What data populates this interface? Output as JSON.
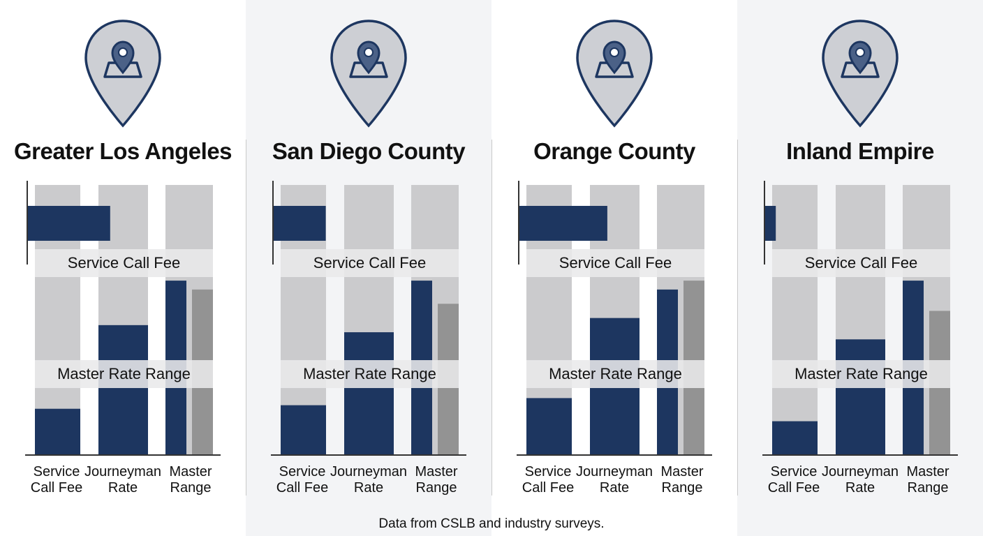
{
  "caption": "Data from CSLB and industry surveys.",
  "colors": {
    "bar": "#1d3660",
    "track": "#cbcbcd",
    "master_max": "#939393",
    "band": "#e9e9eb",
    "axis": "#333333",
    "panel_alt": "#f3f4f6",
    "pin_fill": "#cdcfd4",
    "pin_stroke": "#1d3660"
  },
  "icons": {
    "region": "map-pin-icon"
  },
  "chart_data": [
    {
      "type": "bar",
      "title": "Greater Los Angeles",
      "categories": [
        "Service Call Fee",
        "Journeyman Rate",
        "Master Range"
      ],
      "category_labels": [
        [
          "Service",
          "Call Fee"
        ],
        [
          "Journeyman",
          "Rate"
        ],
        [
          "Master",
          "Range"
        ]
      ],
      "band_labels": [
        "Service Call Fee",
        "Master Rate Range"
      ],
      "horizontal_bar": {
        "label": "Service Call Fee",
        "value": 0.44
      },
      "values": [
        0.26,
        0.73,
        0.98
      ],
      "master_max": 0.93,
      "ylim": [
        0,
        1
      ]
    },
    {
      "type": "bar",
      "title": "San Diego County",
      "categories": [
        "Service Call Fee",
        "Journeyman Rate",
        "Master Range"
      ],
      "category_labels": [
        [
          "Service",
          "Call Fee"
        ],
        [
          "Journeyman",
          "Rate"
        ],
        [
          "Master",
          "Range"
        ]
      ],
      "band_labels": [
        "Service Call Fee",
        "Master Rate Range"
      ],
      "horizontal_bar": {
        "label": "Service Call Fee",
        "value": 0.28
      },
      "values": [
        0.28,
        0.69,
        0.98
      ],
      "master_max": 0.85,
      "ylim": [
        0,
        1
      ]
    },
    {
      "type": "bar",
      "title": "Orange County",
      "categories": [
        "Service Call Fee",
        "Journeyman Rate",
        "Master Range"
      ],
      "category_labels": [
        [
          "Service",
          "Call Fee"
        ],
        [
          "Journeyman",
          "Rate"
        ],
        [
          "Master",
          "Range"
        ]
      ],
      "band_labels": [
        "Service Call Fee",
        "Master Rate Range"
      ],
      "horizontal_bar": {
        "label": "Service Call Fee",
        "value": 0.47
      },
      "values": [
        0.32,
        0.77,
        0.93
      ],
      "master_max": 0.98,
      "ylim": [
        0,
        1
      ]
    },
    {
      "type": "bar",
      "title": "Inland Empire",
      "categories": [
        "Service Call Fee",
        "Journeyman Rate",
        "Master Range"
      ],
      "category_labels": [
        [
          "Service",
          "Call Fee"
        ],
        [
          "Journeyman",
          "Rate"
        ],
        [
          "Master",
          "Range"
        ]
      ],
      "band_labels": [
        "Service Call Fee",
        "Master Rate Range"
      ],
      "horizontal_bar": {
        "label": "Service Call Fee",
        "value": 0.06
      },
      "values": [
        0.19,
        0.65,
        0.98
      ],
      "master_max": 0.81,
      "ylim": [
        0,
        1
      ]
    }
  ]
}
